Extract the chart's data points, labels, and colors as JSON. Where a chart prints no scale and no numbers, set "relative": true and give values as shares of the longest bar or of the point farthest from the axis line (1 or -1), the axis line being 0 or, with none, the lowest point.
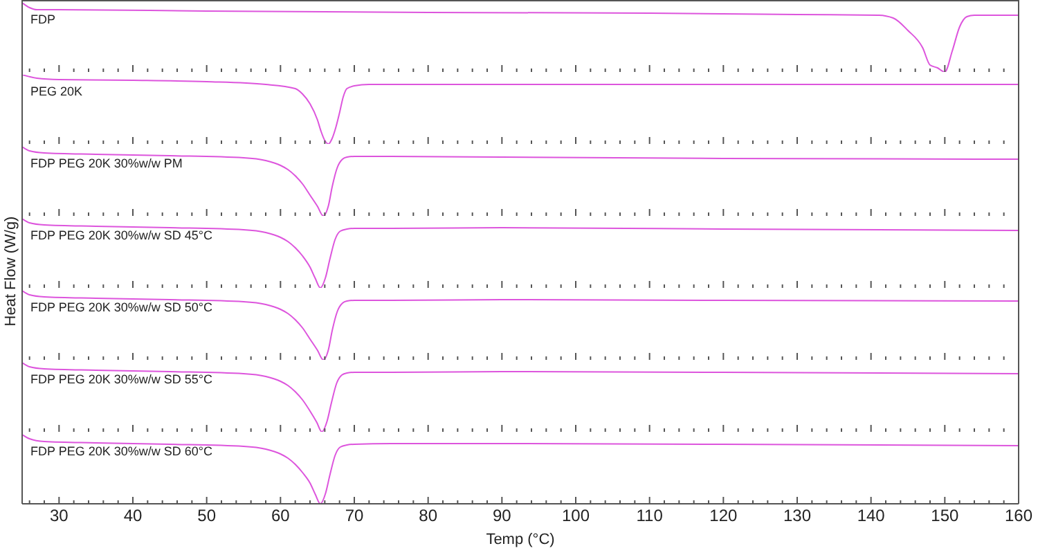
{
  "chart_data": [
    {
      "type": "line",
      "title": "FDP",
      "relative": true,
      "tick_labels": false,
      "marker": "none",
      "line_style": "solid",
      "xlim": [
        25,
        160
      ],
      "xticks": [
        30,
        40,
        50,
        60,
        70,
        80,
        90,
        100,
        110,
        120,
        130,
        140,
        150,
        160
      ],
      "series": [
        {
          "color": "#dd55dd",
          "x": [
            25,
            26,
            27,
            30,
            50,
            80,
            110,
            130,
            141,
            143,
            145,
            147,
            148,
            149,
            150,
            151,
            152,
            153,
            154,
            156,
            160
          ],
          "values": [
            1,
            0.93,
            0.9,
            0.9,
            0.88,
            0.86,
            0.85,
            0.83,
            0.82,
            0.78,
            0.6,
            0.35,
            0.1,
            0.06,
            0,
            0.3,
            0.65,
            0.8,
            0.82,
            0.82,
            0.82
          ]
        }
      ]
    },
    {
      "type": "line",
      "title": "PEG 20K",
      "relative": true,
      "tick_labels": false,
      "marker": "none",
      "line_style": "solid",
      "xlim": [
        25,
        160
      ],
      "xticks": [
        30,
        40,
        50,
        60,
        70,
        80,
        90,
        100,
        110,
        120,
        130,
        140,
        150,
        160
      ],
      "series": [
        {
          "color": "#dd55dd",
          "x": [
            25,
            27,
            30,
            40,
            50,
            58,
            62,
            63,
            64,
            65,
            65.5,
            66,
            66.5,
            67,
            67.5,
            68,
            68.5,
            69,
            70,
            72,
            80,
            120,
            160
          ],
          "values": [
            1,
            0.95,
            0.93,
            0.92,
            0.9,
            0.86,
            0.8,
            0.72,
            0.58,
            0.35,
            0.18,
            0.05,
            0,
            0.08,
            0.24,
            0.45,
            0.68,
            0.8,
            0.84,
            0.86,
            0.86,
            0.86,
            0.86
          ]
        }
      ]
    },
    {
      "type": "line",
      "title": "FDP PEG 20K 30%w/w PM",
      "relative": true,
      "tick_labels": false,
      "marker": "none",
      "line_style": "solid",
      "xlim": [
        25,
        160
      ],
      "xticks": [
        30,
        40,
        50,
        60,
        70,
        80,
        90,
        100,
        110,
        120,
        130,
        140,
        150,
        160
      ],
      "series": [
        {
          "color": "#dd55dd",
          "x": [
            25,
            26,
            28,
            35,
            45,
            55,
            58,
            60,
            61,
            62,
            63,
            64,
            65,
            65.8,
            66.5,
            67,
            67.7,
            68.4,
            69,
            70,
            75,
            90,
            120,
            160
          ],
          "values": [
            1,
            0.94,
            0.91,
            0.89,
            0.87,
            0.84,
            0.8,
            0.73,
            0.67,
            0.58,
            0.46,
            0.3,
            0.14,
            0,
            0.15,
            0.42,
            0.7,
            0.82,
            0.85,
            0.86,
            0.86,
            0.85,
            0.83,
            0.82
          ]
        }
      ]
    },
    {
      "type": "line",
      "title": "FDP PEG 20K 30%w/w SD 45°C",
      "ylabel": "Heat Flow (W/g)",
      "relative": true,
      "tick_labels": false,
      "marker": "none",
      "line_style": "solid",
      "xlim": [
        25,
        160
      ],
      "xticks": [
        30,
        40,
        50,
        60,
        70,
        80,
        90,
        100,
        110,
        120,
        130,
        140,
        150,
        160
      ],
      "series": [
        {
          "color": "#dd55dd",
          "x": [
            25,
            26,
            28,
            35,
            45,
            55,
            58,
            60,
            61,
            62,
            63,
            64,
            64.7,
            65.4,
            66.1,
            66.7,
            67.4,
            68.1,
            69,
            70,
            75,
            90,
            120,
            160
          ],
          "values": [
            1,
            0.94,
            0.91,
            0.89,
            0.87,
            0.84,
            0.8,
            0.73,
            0.67,
            0.58,
            0.46,
            0.3,
            0.14,
            0,
            0.15,
            0.42,
            0.7,
            0.82,
            0.85,
            0.86,
            0.86,
            0.87,
            0.85,
            0.83
          ]
        }
      ]
    },
    {
      "type": "line",
      "title": "FDP PEG 20K 30%w/w SD 50°C",
      "relative": true,
      "tick_labels": false,
      "marker": "none",
      "line_style": "solid",
      "xlim": [
        25,
        160
      ],
      "xticks": [
        30,
        40,
        50,
        60,
        70,
        80,
        90,
        100,
        110,
        120,
        130,
        140,
        150,
        160
      ],
      "series": [
        {
          "color": "#dd55dd",
          "x": [
            25,
            26,
            28,
            35,
            45,
            55,
            58,
            60,
            61,
            62,
            63,
            64,
            65,
            65.8,
            66.5,
            67,
            67.7,
            68.4,
            69,
            70,
            75,
            90,
            120,
            160
          ],
          "values": [
            1,
            0.94,
            0.91,
            0.89,
            0.87,
            0.84,
            0.8,
            0.73,
            0.67,
            0.58,
            0.46,
            0.3,
            0.14,
            0,
            0.15,
            0.42,
            0.7,
            0.82,
            0.85,
            0.86,
            0.86,
            0.87,
            0.86,
            0.85
          ]
        }
      ]
    },
    {
      "type": "line",
      "title": "FDP PEG 20K 30%w/w SD 55°C",
      "relative": true,
      "tick_labels": false,
      "marker": "none",
      "line_style": "solid",
      "xlim": [
        25,
        160
      ],
      "xticks": [
        30,
        40,
        50,
        60,
        70,
        80,
        90,
        100,
        110,
        120,
        130,
        140,
        150,
        160
      ],
      "series": [
        {
          "color": "#dd55dd",
          "x": [
            25,
            26,
            28,
            35,
            45,
            55,
            58,
            60,
            61,
            62,
            63,
            64,
            64.9,
            65.6,
            66.3,
            66.9,
            67.6,
            68.3,
            69,
            70,
            75,
            90,
            120,
            160
          ],
          "values": [
            1,
            0.94,
            0.91,
            0.89,
            0.87,
            0.84,
            0.8,
            0.73,
            0.67,
            0.58,
            0.46,
            0.3,
            0.14,
            0,
            0.15,
            0.42,
            0.7,
            0.82,
            0.85,
            0.86,
            0.86,
            0.87,
            0.86,
            0.84
          ]
        }
      ]
    },
    {
      "type": "line",
      "title": "FDP PEG 20K 30%w/w SD 60°C",
      "xlabel": "Temp (°C)",
      "relative": true,
      "tick_labels": "x",
      "marker": "none",
      "line_style": "solid",
      "xlim": [
        25,
        160
      ],
      "xticks": [
        30,
        40,
        50,
        60,
        70,
        80,
        90,
        100,
        110,
        120,
        130,
        140,
        150,
        160
      ],
      "series": [
        {
          "color": "#dd55dd",
          "x": [
            25,
            26,
            28,
            35,
            45,
            55,
            58,
            60,
            61,
            62,
            63,
            64,
            64.7,
            65.4,
            66.1,
            66.7,
            67.4,
            68.1,
            69,
            70,
            75,
            90,
            120,
            160
          ],
          "values": [
            1,
            0.94,
            0.9,
            0.88,
            0.86,
            0.83,
            0.79,
            0.72,
            0.66,
            0.57,
            0.45,
            0.3,
            0.14,
            0,
            0.15,
            0.42,
            0.7,
            0.82,
            0.85,
            0.86,
            0.87,
            0.87,
            0.86,
            0.84
          ]
        }
      ]
    }
  ]
}
